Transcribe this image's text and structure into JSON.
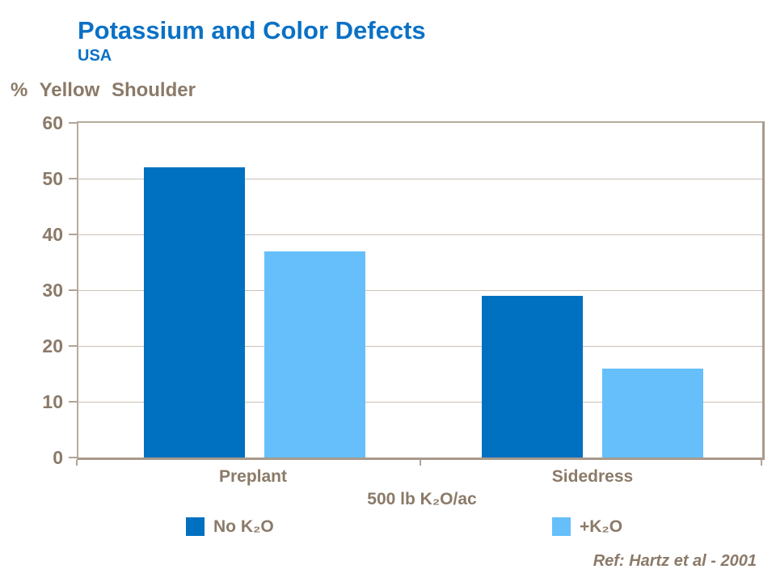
{
  "header": {
    "title": "Potassium and Color Defects",
    "subtitle": "USA"
  },
  "chart_data": {
    "type": "bar",
    "categories": [
      "Preplant",
      "Sidedress"
    ],
    "series": [
      {
        "name": "No K₂O",
        "color": "#0070c0",
        "values": [
          52,
          29
        ]
      },
      {
        "name": "+K₂O",
        "color": "#66bffa",
        "values": [
          37,
          16
        ]
      }
    ],
    "title": "Potassium and Color Defects",
    "ylabel": "% Yellow Shoulder",
    "xlabel": "500 lb K₂O/ac",
    "ylim": [
      0,
      60
    ],
    "yticks": [
      0,
      10,
      20,
      30,
      40,
      50,
      60
    ],
    "grid": true,
    "legend_position": "bottom"
  },
  "colors": {
    "title_blue": "#0a71c5",
    "text_tan": "#8b7a68",
    "gridline": "#ccc0b4",
    "axis_frame": "#b8aa9c"
  },
  "footer": {
    "ref": "Ref: Hartz et al - 2001"
  }
}
